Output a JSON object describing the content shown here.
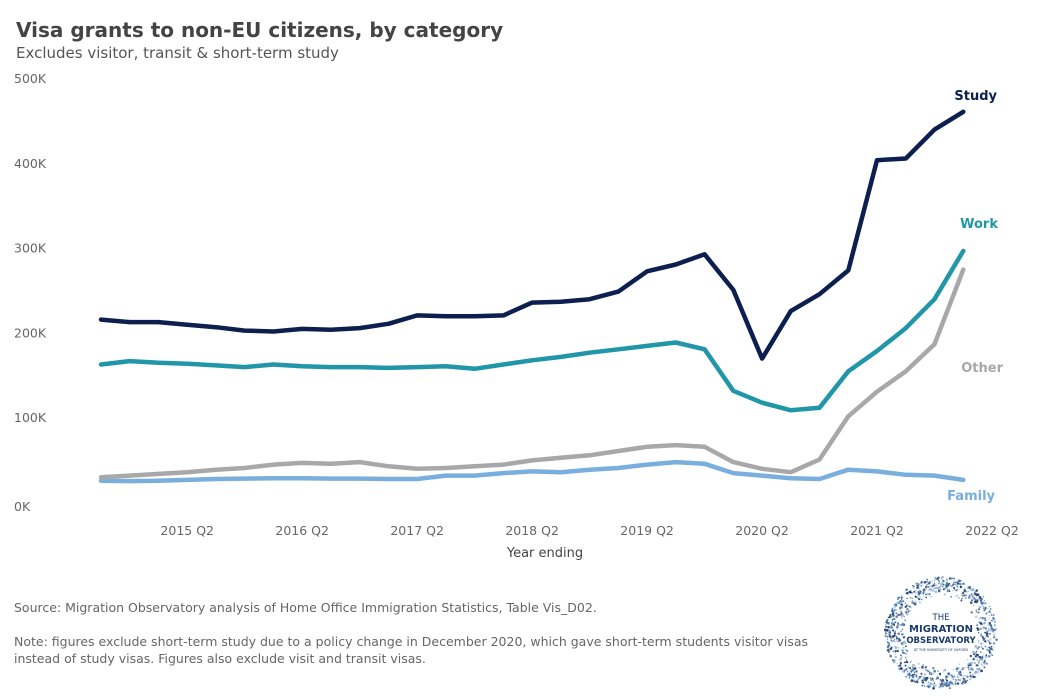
{
  "header": {
    "title": "Visa grants to non-EU citizens, by category",
    "subtitle": "Excludes visitor, transit & short-term study"
  },
  "footer": {
    "source": "Source: Migration Observatory analysis of Home Office Immigration Statistics, Table Vis_D02.",
    "note": "Note: figures exclude short-term study due to a policy change in December 2020, which gave short-term students visitor visas instead of study visas. Figures also exclude visit and transit visas."
  },
  "logo": {
    "lines": [
      "THE",
      "MIGRATION",
      "OBSERVATORY",
      "AT THE UNIVERSITY OF OXFORD"
    ],
    "color": "#1a3a6b"
  },
  "chart_data": {
    "type": "line",
    "xlabel": "Year ending",
    "ylabel": "",
    "ylim": [
      0,
      500000
    ],
    "yticks": [
      0,
      100000,
      200000,
      300000,
      400000,
      500000
    ],
    "ytick_labels": [
      "0K",
      "100K",
      "200K",
      "300K",
      "400K",
      "500K"
    ],
    "x": [
      "2014 Q3",
      "2014 Q4",
      "2015 Q1",
      "2015 Q2",
      "2015 Q3",
      "2015 Q4",
      "2016 Q1",
      "2016 Q2",
      "2016 Q3",
      "2016 Q4",
      "2017 Q1",
      "2017 Q2",
      "2017 Q3",
      "2017 Q4",
      "2018 Q1",
      "2018 Q2",
      "2018 Q3",
      "2018 Q4",
      "2019 Q1",
      "2019 Q2",
      "2019 Q3",
      "2019 Q4",
      "2020 Q1",
      "2020 Q2",
      "2020 Q3",
      "2020 Q4",
      "2021 Q1",
      "2021 Q2",
      "2021 Q3",
      "2021 Q4",
      "2022 Q1",
      "2022 Q2"
    ],
    "x_tick_labels": [
      "2015 Q2",
      "2016 Q2",
      "2017 Q2",
      "2018 Q2",
      "2019 Q2",
      "2020 Q2",
      "2021 Q2",
      "2022 Q2"
    ],
    "grid": false,
    "legend": "direct labels at line ends",
    "series": [
      {
        "name": "Study",
        "color": "#0d1f4f",
        "values": [
          221000,
          218000,
          218000,
          215000,
          212000,
          208000,
          207000,
          210000,
          209000,
          211000,
          216000,
          226000,
          225000,
          225000,
          226000,
          241000,
          242000,
          245000,
          254000,
          278000,
          286000,
          298000,
          256000,
          175000,
          231000,
          251000,
          279000,
          409000,
          411000,
          445000,
          466000,
          null
        ]
      },
      {
        "name": "Work",
        "color": "#2196a8",
        "values": [
          168000,
          172000,
          170000,
          169000,
          167000,
          165000,
          168000,
          166000,
          165000,
          165000,
          164000,
          165000,
          166000,
          163000,
          168000,
          173000,
          177000,
          182000,
          186000,
          190000,
          194000,
          186000,
          137000,
          123000,
          114000,
          117000,
          160000,
          184000,
          211000,
          245000,
          302000,
          null
        ]
      },
      {
        "name": "Other",
        "color": "#a8a8a8",
        "values": [
          35000,
          37000,
          39000,
          41000,
          44000,
          46000,
          50000,
          52000,
          51000,
          53000,
          48000,
          45000,
          46000,
          48000,
          50000,
          55000,
          58000,
          61000,
          66000,
          71000,
          73000,
          71000,
          53000,
          45000,
          41000,
          56000,
          107000,
          136000,
          160000,
          192000,
          280000,
          null
        ]
      },
      {
        "name": "Family",
        "color": "#7aaedd",
        "values": [
          31000,
          30500,
          31000,
          32000,
          33000,
          33500,
          34000,
          34000,
          33500,
          33500,
          33000,
          33000,
          37000,
          37000,
          40000,
          42000,
          41000,
          44000,
          46000,
          50000,
          53000,
          51000,
          40000,
          37000,
          34000,
          33000,
          44000,
          42000,
          38000,
          37000,
          32000,
          null
        ]
      }
    ]
  }
}
